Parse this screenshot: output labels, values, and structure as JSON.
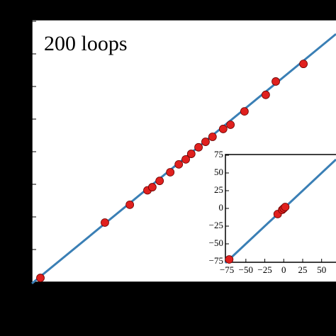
{
  "chart_data": [
    {
      "type": "scatter",
      "annotation": "200 loops",
      "xlim": [
        0,
        100
      ],
      "ylim": [
        0,
        100
      ],
      "series": [
        {
          "kind": "line",
          "color": "#3a7fb5",
          "x": [
            0,
            100
          ],
          "values": [
            -0.5,
            94.6
          ]
        },
        {
          "kind": "points",
          "color": "#e0201e",
          "x": [
            2.8,
            24,
            32.2,
            38,
            39.6,
            42,
            45.5,
            48.3,
            50.6,
            52.4,
            54.8,
            57.1,
            59.4,
            62.9,
            65.3,
            69.9,
            76.9,
            80.2,
            89.3
          ],
          "values": [
            1.6,
            22.7,
            29.5,
            35,
            36.2,
            38.6,
            41.9,
            44.9,
            46.8,
            48.9,
            51.4,
            53.5,
            55.4,
            58.4,
            60,
            65.1,
            71.4,
            76.5,
            83.2
          ]
        }
      ]
    },
    {
      "type": "scatter",
      "xlim": [
        -77,
        69
      ],
      "ylim": [
        -76,
        76
      ],
      "xticks": [
        {
          "value": -75,
          "label": "−75"
        },
        {
          "value": -50,
          "label": "−50"
        },
        {
          "value": -25,
          "label": "−25"
        },
        0,
        25,
        50
      ],
      "yticks": [
        {
          "value": -75,
          "label": "−75"
        },
        {
          "value": -50,
          "label": "−50"
        },
        {
          "value": -25,
          "label": "−25"
        },
        0,
        25,
        50,
        75
      ],
      "series": [
        {
          "kind": "line",
          "color": "#3a7fb5",
          "x": [
            -77,
            69
          ],
          "values": [
            -77,
            69
          ]
        },
        {
          "kind": "points",
          "color": "#e0201e",
          "x": [
            -72,
            -8,
            -2,
            0,
            2
          ],
          "values": [
            -72,
            -8,
            -2,
            0,
            2
          ]
        }
      ]
    }
  ]
}
